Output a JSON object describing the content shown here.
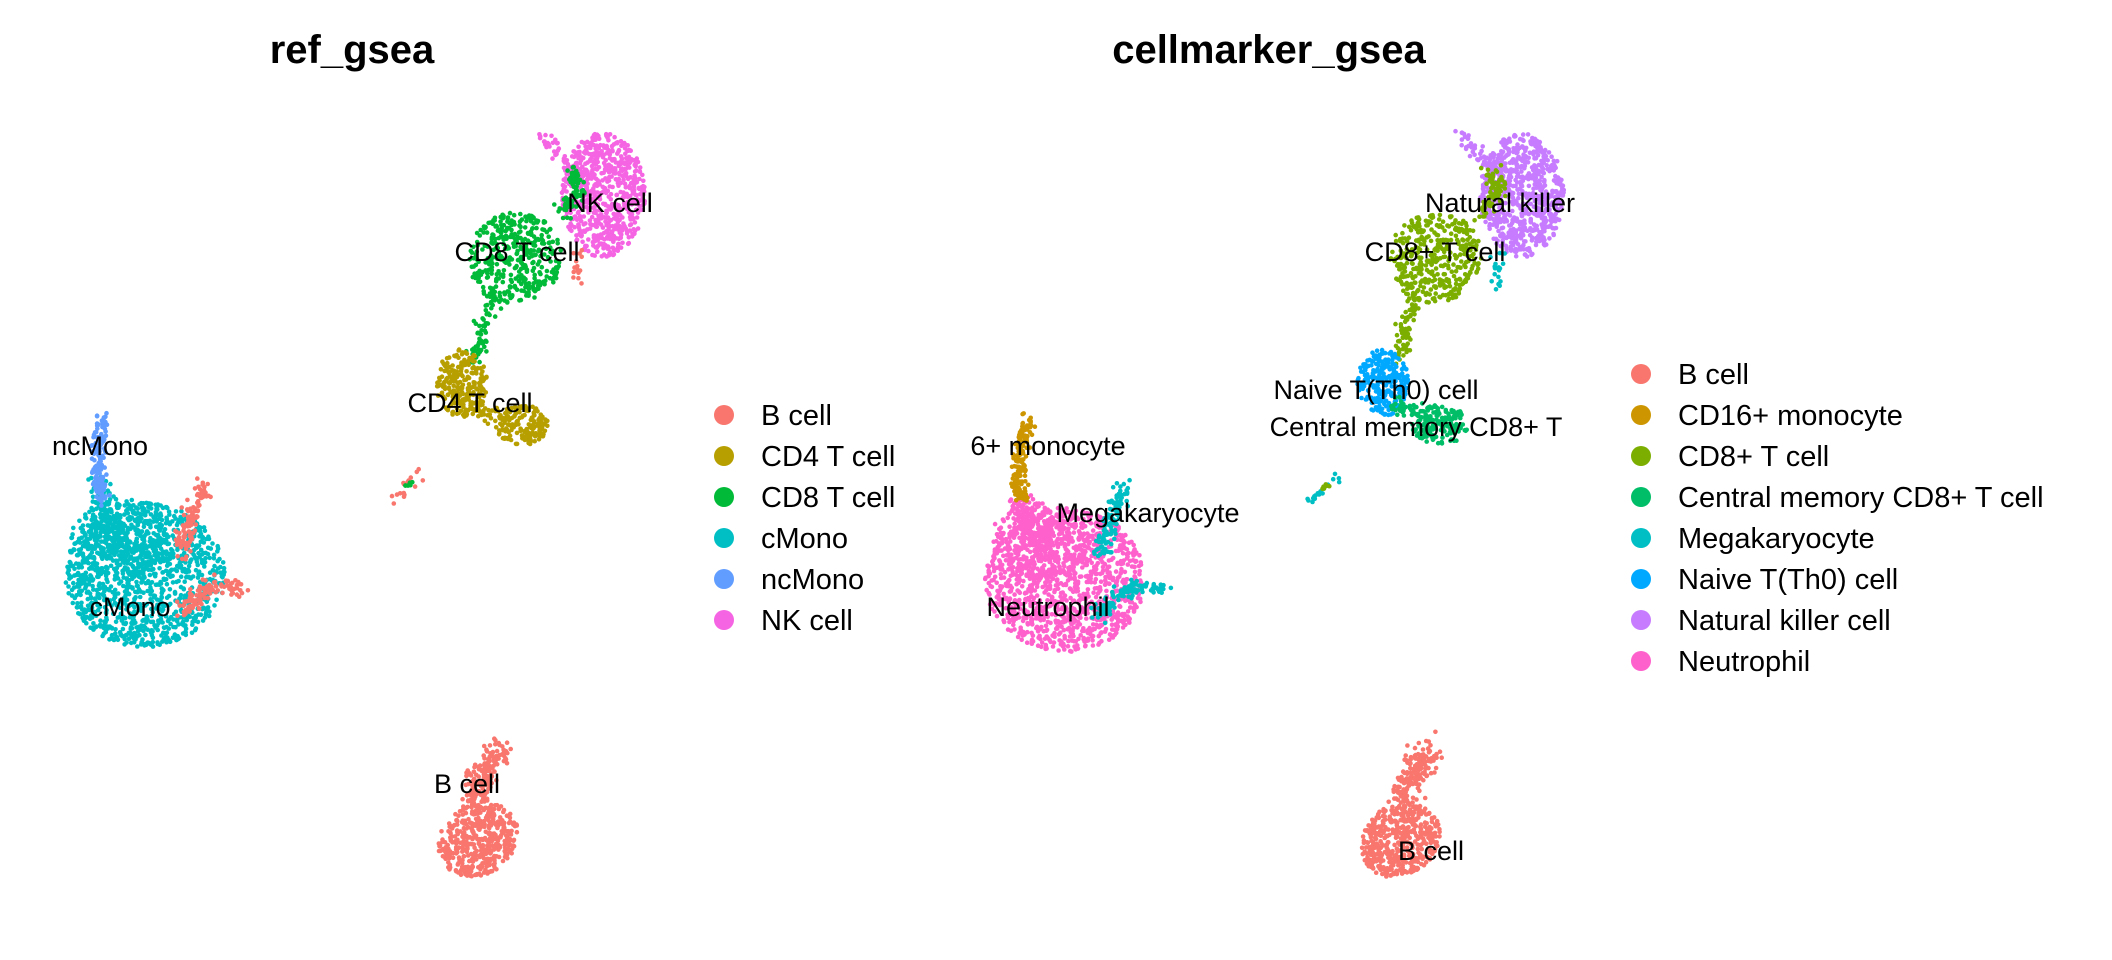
{
  "chart_data": [
    {
      "type": "scatter",
      "title": "ref_gsea",
      "legend": [
        {
          "label": "B cell",
          "color": "#F8766D"
        },
        {
          "label": "CD4 T cell",
          "color": "#B79F00"
        },
        {
          "label": "CD8 T cell",
          "color": "#00BA38"
        },
        {
          "label": "cMono",
          "color": "#00BFC4"
        },
        {
          "label": "ncMono",
          "color": "#619CFF"
        },
        {
          "label": "NK cell",
          "color": "#F564E3"
        }
      ],
      "cluster_labels": [
        "ncMono",
        "cMono",
        "NK cell",
        "CD8 T cell",
        "CD4 T cell",
        "B cell"
      ],
      "legend_position": "right"
    },
    {
      "type": "scatter",
      "title": "cellmarker_gsea",
      "legend": [
        {
          "label": "B cell",
          "color": "#F8766D"
        },
        {
          "label": "CD16+ monocyte",
          "color": "#CD9600"
        },
        {
          "label": "CD8+ T cell",
          "color": "#7CAE00"
        },
        {
          "label": "Central memory CD8+ T cell",
          "color": "#00BE67"
        },
        {
          "label": "Megakaryocyte",
          "color": "#00BFC4"
        },
        {
          "label": "Naive T(Th0) cell",
          "color": "#00A9FF"
        },
        {
          "label": "Natural killer cell",
          "color": "#C77CFF"
        },
        {
          "label": "Neutrophil",
          "color": "#FF61CC"
        }
      ],
      "cluster_labels": [
        "6+ monocyte",
        "Megakaryocyte",
        "Neutrophil",
        "Natural killer",
        "CD8+ T cell",
        "Naive T(Th0) cell",
        "Central memory CD8+ T",
        "B cell"
      ],
      "legend_position": "right"
    }
  ]
}
